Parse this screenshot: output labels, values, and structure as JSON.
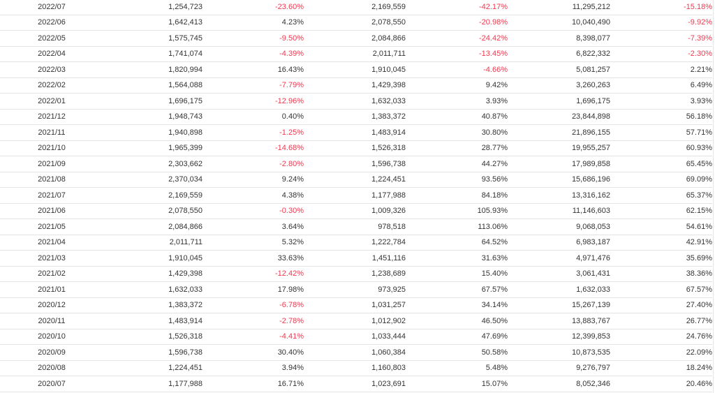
{
  "table": {
    "rows": [
      {
        "month": "2022/07",
        "value": "1,254,723",
        "change": "-23.60%",
        "prev_year_value": "2,169,559",
        "yoy_change": "-42.17%",
        "cumulative": "11,295,212",
        "cumulative_change": "-15.18%"
      },
      {
        "month": "2022/06",
        "value": "1,642,413",
        "change": "4.23%",
        "prev_year_value": "2,078,550",
        "yoy_change": "-20.98%",
        "cumulative": "10,040,490",
        "cumulative_change": "-9.92%"
      },
      {
        "month": "2022/05",
        "value": "1,575,745",
        "change": "-9.50%",
        "prev_year_value": "2,084,866",
        "yoy_change": "-24.42%",
        "cumulative": "8,398,077",
        "cumulative_change": "-7.39%"
      },
      {
        "month": "2022/04",
        "value": "1,741,074",
        "change": "-4.39%",
        "prev_year_value": "2,011,711",
        "yoy_change": "-13.45%",
        "cumulative": "6,822,332",
        "cumulative_change": "-2.30%"
      },
      {
        "month": "2022/03",
        "value": "1,820,994",
        "change": "16.43%",
        "prev_year_value": "1,910,045",
        "yoy_change": "-4.66%",
        "cumulative": "5,081,257",
        "cumulative_change": "2.21%"
      },
      {
        "month": "2022/02",
        "value": "1,564,088",
        "change": "-7.79%",
        "prev_year_value": "1,429,398",
        "yoy_change": "9.42%",
        "cumulative": "3,260,263",
        "cumulative_change": "6.49%"
      },
      {
        "month": "2022/01",
        "value": "1,696,175",
        "change": "-12.96%",
        "prev_year_value": "1,632,033",
        "yoy_change": "3.93%",
        "cumulative": "1,696,175",
        "cumulative_change": "3.93%"
      },
      {
        "month": "2021/12",
        "value": "1,948,743",
        "change": "0.40%",
        "prev_year_value": "1,383,372",
        "yoy_change": "40.87%",
        "cumulative": "23,844,898",
        "cumulative_change": "56.18%"
      },
      {
        "month": "2021/11",
        "value": "1,940,898",
        "change": "-1.25%",
        "prev_year_value": "1,483,914",
        "yoy_change": "30.80%",
        "cumulative": "21,896,155",
        "cumulative_change": "57.71%"
      },
      {
        "month": "2021/10",
        "value": "1,965,399",
        "change": "-14.68%",
        "prev_year_value": "1,526,318",
        "yoy_change": "28.77%",
        "cumulative": "19,955,257",
        "cumulative_change": "60.93%"
      },
      {
        "month": "2021/09",
        "value": "2,303,662",
        "change": "-2.80%",
        "prev_year_value": "1,596,738",
        "yoy_change": "44.27%",
        "cumulative": "17,989,858",
        "cumulative_change": "65.45%"
      },
      {
        "month": "2021/08",
        "value": "2,370,034",
        "change": "9.24%",
        "prev_year_value": "1,224,451",
        "yoy_change": "93.56%",
        "cumulative": "15,686,196",
        "cumulative_change": "69.09%"
      },
      {
        "month": "2021/07",
        "value": "2,169,559",
        "change": "4.38%",
        "prev_year_value": "1,177,988",
        "yoy_change": "84.18%",
        "cumulative": "13,316,162",
        "cumulative_change": "65.37%"
      },
      {
        "month": "2021/06",
        "value": "2,078,550",
        "change": "-0.30%",
        "prev_year_value": "1,009,326",
        "yoy_change": "105.93%",
        "cumulative": "11,146,603",
        "cumulative_change": "62.15%"
      },
      {
        "month": "2021/05",
        "value": "2,084,866",
        "change": "3.64%",
        "prev_year_value": "978,518",
        "yoy_change": "113.06%",
        "cumulative": "9,068,053",
        "cumulative_change": "54.61%"
      },
      {
        "month": "2021/04",
        "value": "2,011,711",
        "change": "5.32%",
        "prev_year_value": "1,222,784",
        "yoy_change": "64.52%",
        "cumulative": "6,983,187",
        "cumulative_change": "42.91%"
      },
      {
        "month": "2021/03",
        "value": "1,910,045",
        "change": "33.63%",
        "prev_year_value": "1,451,116",
        "yoy_change": "31.63%",
        "cumulative": "4,971,476",
        "cumulative_change": "35.69%"
      },
      {
        "month": "2021/02",
        "value": "1,429,398",
        "change": "-12.42%",
        "prev_year_value": "1,238,689",
        "yoy_change": "15.40%",
        "cumulative": "3,061,431",
        "cumulative_change": "38.36%"
      },
      {
        "month": "2021/01",
        "value": "1,632,033",
        "change": "17.98%",
        "prev_year_value": "973,925",
        "yoy_change": "67.57%",
        "cumulative": "1,632,033",
        "cumulative_change": "67.57%"
      },
      {
        "month": "2020/12",
        "value": "1,383,372",
        "change": "-6.78%",
        "prev_year_value": "1,031,257",
        "yoy_change": "34.14%",
        "cumulative": "15,267,139",
        "cumulative_change": "27.40%"
      },
      {
        "month": "2020/11",
        "value": "1,483,914",
        "change": "-2.78%",
        "prev_year_value": "1,012,902",
        "yoy_change": "46.50%",
        "cumulative": "13,883,767",
        "cumulative_change": "26.77%"
      },
      {
        "month": "2020/10",
        "value": "1,526,318",
        "change": "-4.41%",
        "prev_year_value": "1,033,444",
        "yoy_change": "47.69%",
        "cumulative": "12,399,853",
        "cumulative_change": "24.76%"
      },
      {
        "month": "2020/09",
        "value": "1,596,738",
        "change": "30.40%",
        "prev_year_value": "1,060,384",
        "yoy_change": "50.58%",
        "cumulative": "10,873,535",
        "cumulative_change": "22.09%"
      },
      {
        "month": "2020/08",
        "value": "1,224,451",
        "change": "3.94%",
        "prev_year_value": "1,160,803",
        "yoy_change": "5.48%",
        "cumulative": "9,276,797",
        "cumulative_change": "18.24%"
      },
      {
        "month": "2020/07",
        "value": "1,177,988",
        "change": "16.71%",
        "prev_year_value": "1,023,691",
        "yoy_change": "15.07%",
        "cumulative": "8,052,346",
        "cumulative_change": "20.46%"
      }
    ]
  },
  "colors": {
    "negative": "#f0384f",
    "text": "#333333",
    "border": "#e3e3e3"
  }
}
